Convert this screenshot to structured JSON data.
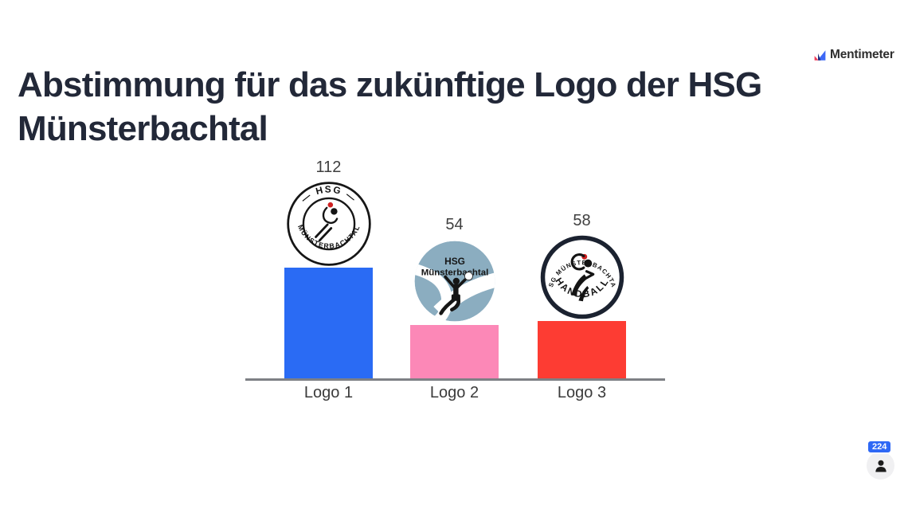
{
  "header": {
    "title": "Abstimmung für das zukünftige Logo der HSG Münsterbachtal"
  },
  "branding": {
    "name": "Mentimeter"
  },
  "participants": {
    "count": "224"
  },
  "chart_data": {
    "type": "bar",
    "title": "Abstimmung für das zukünftige Logo der HSG Münsterbachtal",
    "categories": [
      "Logo 1",
      "Logo 2",
      "Logo 3"
    ],
    "values": [
      112,
      54,
      58
    ],
    "value_labels": [
      "112",
      "54",
      "58"
    ],
    "bar_colors": [
      "#2a6bf4",
      "#fc88b7",
      "#fd3c33"
    ],
    "xlabel": "",
    "ylabel": "",
    "ylim": [
      0,
      112
    ],
    "grid": false,
    "legend": "none",
    "bar_images": [
      "hsg-muensterbachtal-badge-logo",
      "hsg-muensterbachtal-blue-circle-logo",
      "hsg-muensterbachtal-handball-badge-logo"
    ]
  },
  "logos": {
    "logo1": {
      "top": "— HSG —",
      "bottom": "MÜNSTERBACHTAL"
    },
    "logo2": {
      "line1": "HSG",
      "line2": "Münsterbachtal"
    },
    "logo3": {
      "top": "HSG MÜNSTERBACHTAL",
      "bottom": "HANDBALL"
    }
  },
  "colors": {
    "title_text": "#222838",
    "axis_line": "#7e8085",
    "label_text": "#3b3b3b",
    "badge_blue": "#2e68f5",
    "logo2_circle": "#8badc0"
  }
}
